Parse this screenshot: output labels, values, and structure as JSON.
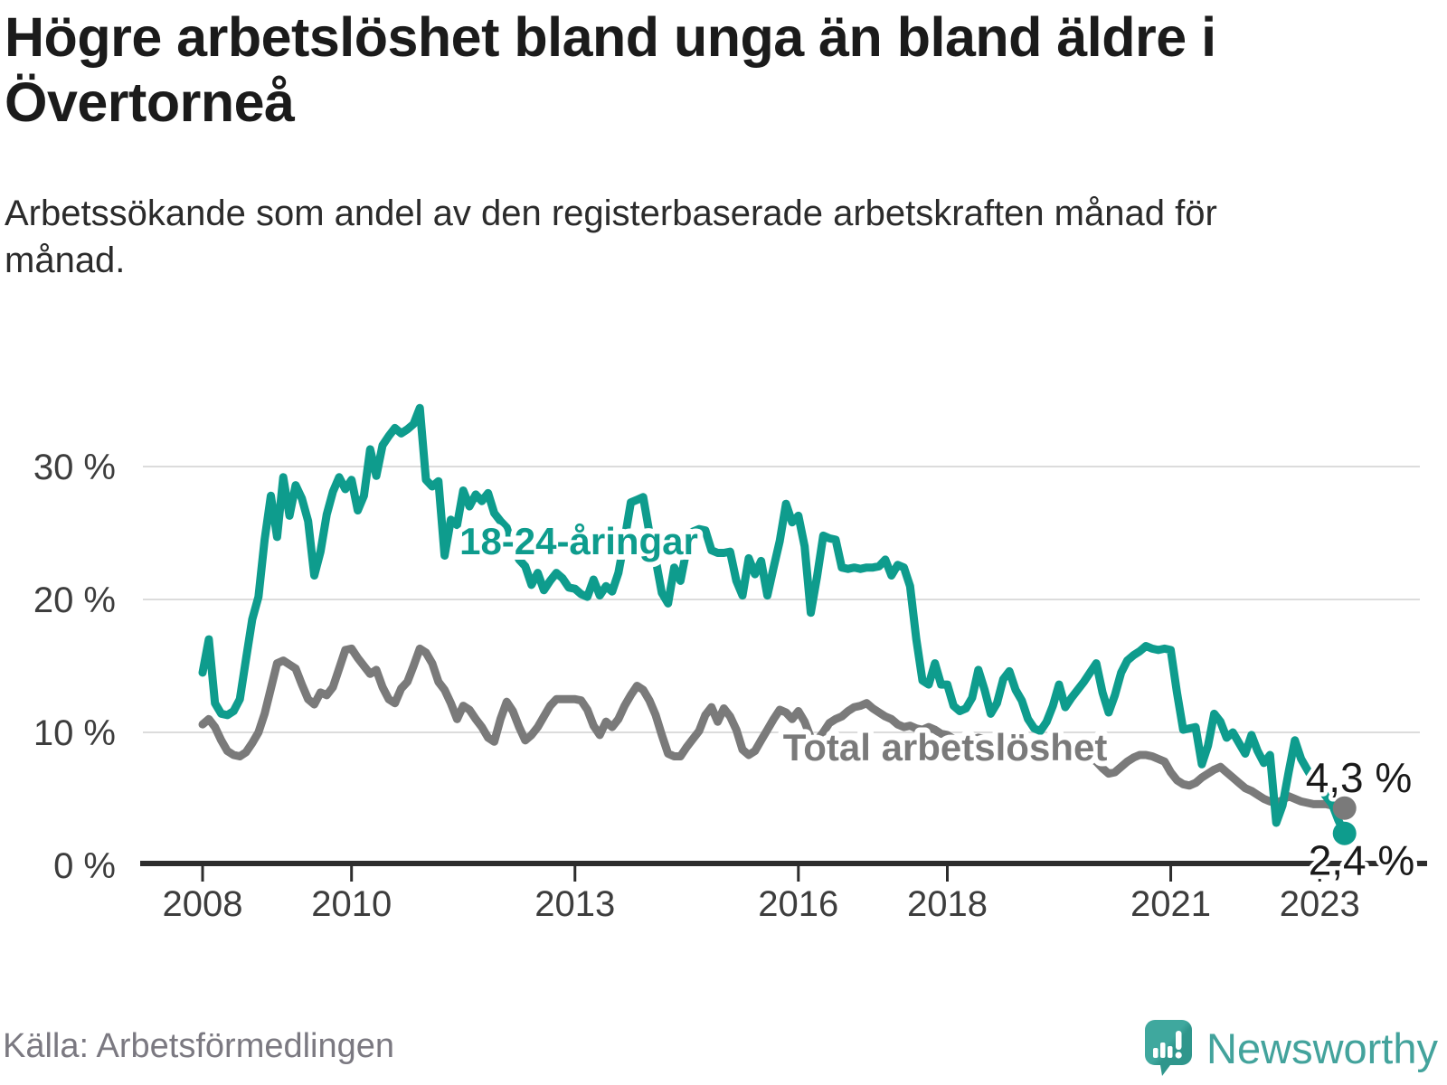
{
  "header": {
    "title": "Högre arbetslöshet bland unga än bland äldre i Övertorneå",
    "subtitle": "Arbetssökande som andel av den registerbaserade arbetskraften månad för månad."
  },
  "footer": {
    "source": "Källa: Arbetsförmedlingen",
    "brand": "Newsworthy"
  },
  "colors": {
    "young_line": "#0e9c8d",
    "total_line": "#7a7a7a",
    "annotation": "#1a1a1a",
    "gridline": "#dcdcdc",
    "axis": "#2d2d2d",
    "axis_text": "#3d3d3d",
    "brand_teal": "#43a39c",
    "logo_light": "#3fa89e",
    "logo_dark": "#2f968c"
  },
  "chart_data": {
    "type": "line",
    "title": "Högre arbetslöshet bland unga än bland äldre i Övertorneå",
    "subtitle": "Arbetssökande som andel av den registerbaserade arbetskraften månad för månad.",
    "frequency": "monthly",
    "x_start": "2008-01",
    "x_end": "2023-05",
    "ylim": [
      0,
      36
    ],
    "grid": "horizontal",
    "legend_position": "inline-labels",
    "x_ticks": [
      {
        "label": "2008",
        "year": 2008
      },
      {
        "label": "2010",
        "year": 2010
      },
      {
        "label": "2013",
        "year": 2013
      },
      {
        "label": "2016",
        "year": 2016
      },
      {
        "label": "2018",
        "year": 2018
      },
      {
        "label": "2021",
        "year": 2021
      },
      {
        "label": "2023",
        "year": 2023
      }
    ],
    "y_ticks": [
      {
        "label": "0 %",
        "value": 0
      },
      {
        "label": "10 %",
        "value": 10
      },
      {
        "label": "20 %",
        "value": 20
      },
      {
        "label": "30 %",
        "value": 30
      }
    ],
    "y_gridlines": [
      10,
      20,
      30
    ],
    "series": [
      {
        "name": "Total arbetslöshet",
        "color": "#7a7a7a",
        "end_label": "4,3 %",
        "end_value": 4.3,
        "values": [
          10.6,
          11.0,
          10.4,
          9.4,
          8.6,
          8.3,
          8.2,
          8.5,
          9.2,
          10.0,
          11.4,
          13.3,
          15.2,
          15.4,
          15.1,
          14.8,
          13.6,
          12.5,
          12.1,
          13.0,
          12.8,
          13.4,
          14.8,
          16.2,
          16.3,
          15.6,
          15.0,
          14.4,
          14.7,
          13.4,
          12.5,
          12.2,
          13.3,
          13.8,
          15.0,
          16.3,
          16.0,
          15.2,
          13.8,
          13.2,
          12.2,
          11.0,
          12.0,
          11.7,
          11.0,
          10.4,
          9.6,
          9.3,
          11.0,
          12.3,
          11.6,
          10.4,
          9.4,
          9.8,
          10.4,
          11.2,
          12.0,
          12.5,
          12.5,
          12.5,
          12.5,
          12.4,
          11.7,
          10.5,
          9.8,
          10.8,
          10.4,
          11.0,
          12.0,
          12.8,
          13.5,
          13.2,
          12.4,
          11.3,
          9.8,
          8.4,
          8.2,
          8.2,
          8.9,
          9.5,
          10.1,
          11.3,
          11.9,
          10.8,
          11.8,
          11.2,
          10.2,
          8.7,
          8.3,
          8.6,
          9.4,
          10.2,
          11.0,
          11.7,
          11.5,
          11.0,
          11.6,
          10.8,
          9.6,
          9.4,
          10.0,
          10.7,
          11.0,
          11.2,
          11.6,
          11.9,
          12.0,
          12.2,
          11.8,
          11.5,
          11.2,
          11.0,
          10.6,
          10.4,
          10.5,
          10.3,
          10.2,
          10.4,
          10.2,
          9.9,
          9.8,
          9.5,
          9.3,
          9.2,
          9.4,
          9.6,
          9.5,
          9.3,
          9.2,
          9.4,
          9.3,
          9.1,
          9.0,
          8.8,
          8.6,
          8.5,
          8.6,
          8.8,
          8.7,
          8.5,
          8.4,
          8.3,
          8.2,
          8.1,
          7.8,
          7.3,
          6.9,
          7.0,
          7.4,
          7.8,
          8.1,
          8.3,
          8.3,
          8.2,
          8.0,
          7.8,
          7.0,
          6.4,
          6.1,
          6.0,
          6.2,
          6.6,
          6.9,
          7.2,
          7.4,
          7.0,
          6.6,
          6.2,
          5.8,
          5.6,
          5.3,
          5.0,
          4.8,
          4.7,
          4.9,
          5.2,
          5.0,
          4.8,
          4.7,
          4.6,
          4.6,
          4.6,
          4.5,
          4.4,
          4.3
        ]
      },
      {
        "name": "18-24-åringar",
        "color": "#0e9c8d",
        "end_label": "2,4 %",
        "end_value": 2.4,
        "values": [
          14.5,
          17.0,
          12.2,
          11.4,
          11.3,
          11.6,
          12.5,
          15.5,
          18.5,
          20.2,
          24.5,
          27.8,
          24.7,
          29.2,
          26.3,
          28.6,
          27.6,
          25.9,
          21.8,
          23.6,
          26.4,
          28.1,
          29.2,
          28.3,
          29.0,
          26.7,
          27.8,
          31.3,
          29.3,
          31.6,
          32.3,
          32.9,
          32.5,
          32.8,
          33.2,
          34.4,
          29.0,
          28.5,
          28.9,
          23.3,
          26.0,
          25.6,
          28.2,
          27.0,
          27.9,
          27.4,
          28.0,
          26.5,
          25.9,
          25.4,
          24.0,
          23.0,
          22.5,
          21.1,
          22.0,
          20.7,
          21.4,
          22.0,
          21.6,
          20.9,
          20.8,
          20.4,
          20.2,
          21.5,
          20.3,
          21.0,
          20.6,
          22.0,
          24.5,
          27.3,
          27.5,
          27.7,
          25.0,
          23.0,
          20.5,
          19.7,
          22.4,
          21.4,
          23.8,
          25.1,
          25.3,
          25.2,
          23.7,
          23.5,
          23.5,
          23.6,
          21.4,
          20.3,
          23.1,
          21.9,
          22.9,
          20.3,
          22.4,
          24.4,
          27.2,
          25.8,
          26.3,
          24.0,
          19.0,
          21.7,
          24.8,
          24.6,
          24.5,
          22.4,
          22.3,
          22.4,
          22.3,
          22.4,
          22.4,
          22.5,
          23.0,
          21.8,
          22.6,
          22.4,
          21.0,
          17.0,
          13.9,
          13.6,
          15.2,
          13.6,
          13.6,
          12.0,
          11.6,
          11.8,
          12.6,
          14.7,
          13.2,
          11.4,
          12.2,
          14.0,
          14.6,
          13.2,
          12.4,
          11.0,
          10.3,
          10.1,
          10.8,
          12.0,
          13.6,
          11.9,
          12.6,
          13.2,
          13.8,
          14.5,
          15.2,
          13.0,
          11.5,
          12.8,
          14.5,
          15.4,
          15.8,
          16.1,
          16.5,
          16.3,
          16.2,
          16.3,
          16.2,
          13.0,
          10.2,
          10.3,
          10.4,
          7.6,
          9.0,
          11.4,
          10.8,
          9.6,
          10.0,
          9.2,
          8.4,
          9.8,
          8.6,
          7.7,
          8.3,
          3.2,
          4.5,
          7.0,
          9.4,
          8.0,
          7.2,
          6.4,
          5.8,
          5.2,
          4.6,
          3.4,
          2.4
        ]
      }
    ]
  }
}
